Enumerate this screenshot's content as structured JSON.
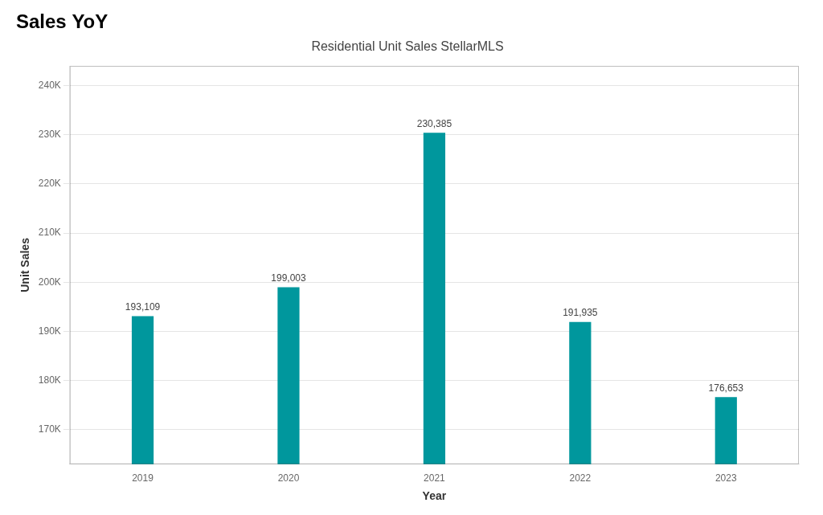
{
  "chart_data": {
    "type": "bar",
    "title": "Residential Unit Sales StellarMLS",
    "subtitle": "Sales YoY",
    "xlabel": "Year",
    "ylabel": "Unit Sales",
    "categories": [
      "2019",
      "2020",
      "2021",
      "2022",
      "2023"
    ],
    "values": [
      193109,
      199003,
      230385,
      191935,
      176653
    ],
    "value_labels": [
      "193,109",
      "199,003",
      "230,385",
      "191,935",
      "176,653"
    ],
    "data_labels": true,
    "color": "#00979D",
    "ylim": [
      163000,
      244000
    ],
    "yticks": [
      {
        "value": 170000,
        "label": "170K"
      },
      {
        "value": 180000,
        "label": "180K"
      },
      {
        "value": 190000,
        "label": "190K"
      },
      {
        "value": 200000,
        "label": "200K"
      },
      {
        "value": 210000,
        "label": "210K"
      },
      {
        "value": 220000,
        "label": "220K"
      },
      {
        "value": 230000,
        "label": "230K"
      },
      {
        "value": 240000,
        "label": "240K"
      }
    ],
    "grid": true
  }
}
